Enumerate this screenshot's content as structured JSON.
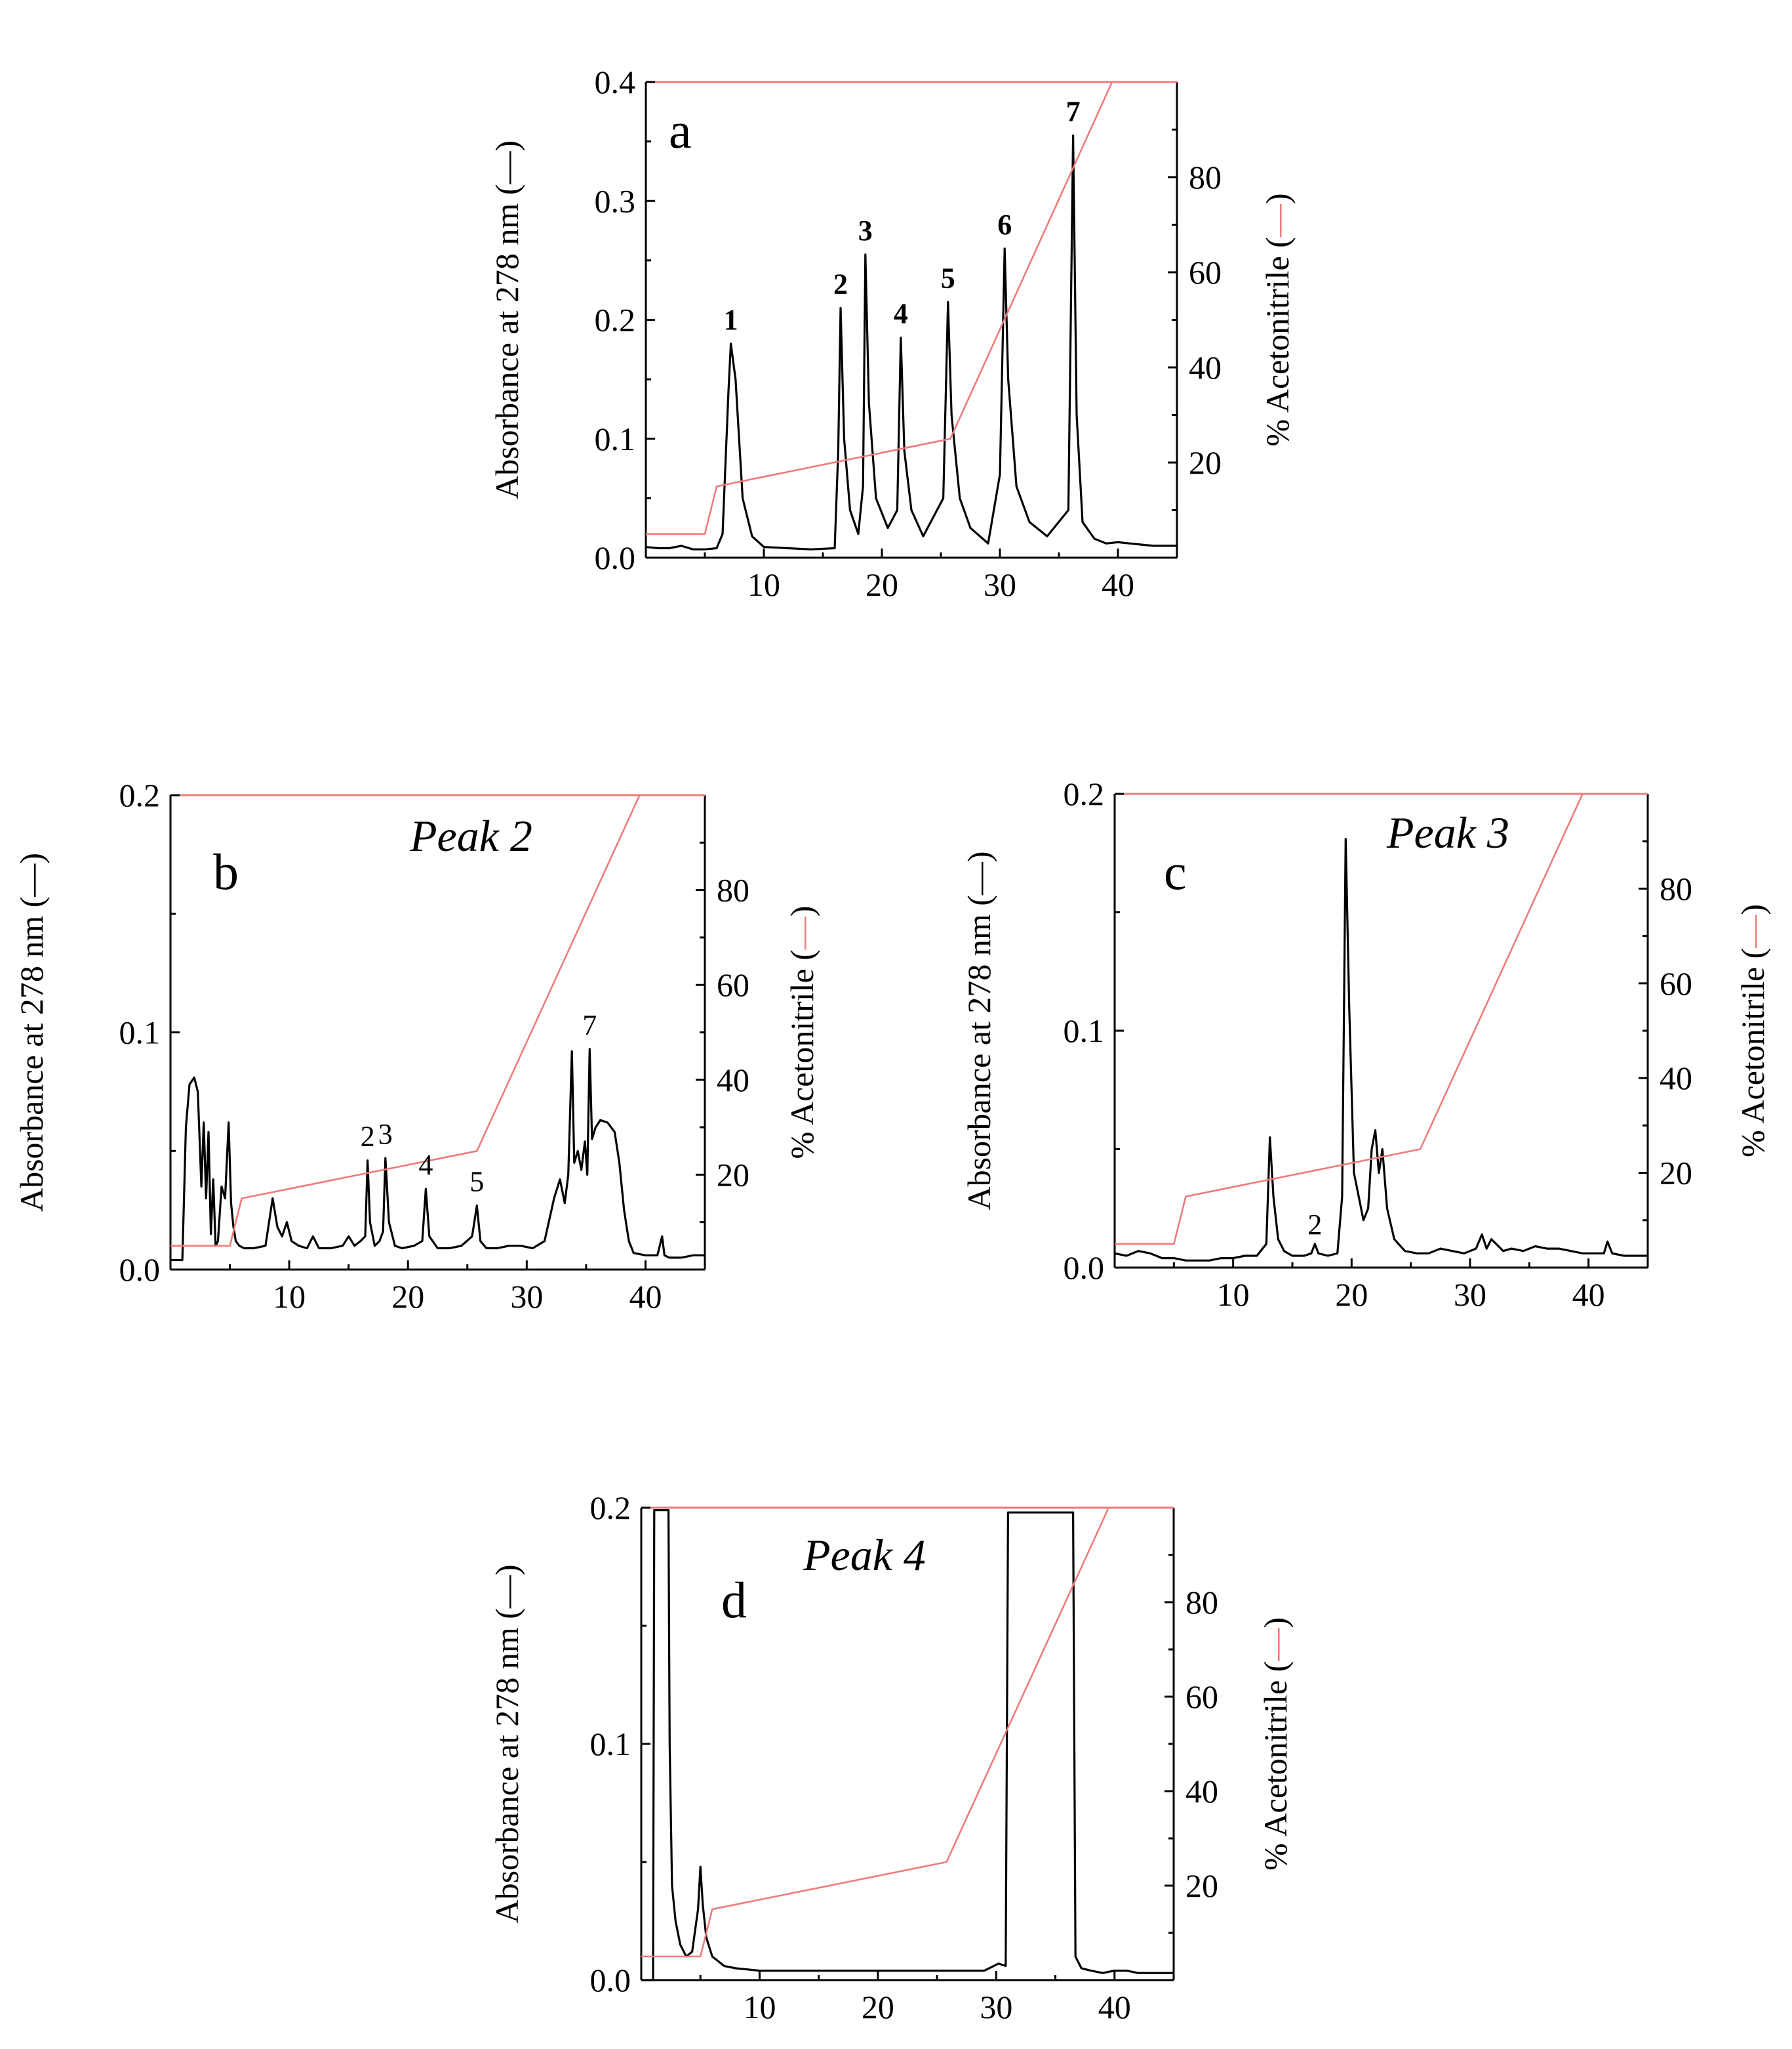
{
  "colors": {
    "absorbance": "#000000",
    "acetonitrile": "#f07a7a"
  },
  "legend_marks": {
    "absorbance": "—",
    "acetonitrile": "—"
  },
  "chart_data": [
    {
      "id": "a",
      "type": "line",
      "panel_label": "a",
      "title": "",
      "xlabel": "",
      "ylabel": "Absorbance at 278 nm (",
      "ylabel_right": "% Acetonitrile (",
      "label_close": ")",
      "xlim": [
        0,
        45
      ],
      "ylim": [
        0,
        0.4
      ],
      "ylim_right": [
        0,
        100
      ],
      "xticks": [
        10,
        20,
        30,
        40
      ],
      "yticks": [
        0.0,
        0.1,
        0.2,
        0.3,
        0.4
      ],
      "ytick_labels": [
        "0.0",
        "0.1",
        "0.2",
        "0.3",
        "0.4"
      ],
      "yticks_right": [
        20,
        40,
        60,
        80
      ],
      "peak_label_style": "bold",
      "peaks": [
        {
          "label": "1",
          "x": 7.2,
          "y": 0.18
        },
        {
          "label": "2",
          "x": 16.5,
          "y": 0.21
        },
        {
          "label": "3",
          "x": 18.6,
          "y": 0.255
        },
        {
          "label": "4",
          "x": 21.6,
          "y": 0.185
        },
        {
          "label": "5",
          "x": 25.6,
          "y": 0.215
        },
        {
          "label": "6",
          "x": 30.4,
          "y": 0.26
        },
        {
          "label": "7",
          "x": 36.2,
          "y": 0.355
        }
      ],
      "series": [
        {
          "name": "Absorbance at 278 nm",
          "axis": "left",
          "x": [
            0,
            1,
            2,
            3,
            4,
            5,
            6,
            6.5,
            7.0,
            7.2,
            7.6,
            8.2,
            9.0,
            10,
            12,
            14,
            16.0,
            16.3,
            16.5,
            16.8,
            17.3,
            18.0,
            18.4,
            18.6,
            18.9,
            19.5,
            20.5,
            21.3,
            21.6,
            21.9,
            22.5,
            23.5,
            25.2,
            25.6,
            25.9,
            26.6,
            27.5,
            29,
            30.0,
            30.4,
            30.7,
            31.4,
            32.5,
            34,
            35.8,
            36.2,
            36.5,
            37.0,
            38,
            39,
            40,
            41,
            42,
            43,
            44,
            45
          ],
          "y": [
            0.009,
            0.008,
            0.008,
            0.01,
            0.007,
            0.007,
            0.008,
            0.02,
            0.14,
            0.18,
            0.15,
            0.05,
            0.018,
            0.009,
            0.008,
            0.007,
            0.008,
            0.09,
            0.21,
            0.1,
            0.04,
            0.02,
            0.06,
            0.255,
            0.13,
            0.05,
            0.025,
            0.04,
            0.185,
            0.09,
            0.04,
            0.018,
            0.05,
            0.215,
            0.12,
            0.05,
            0.025,
            0.012,
            0.07,
            0.26,
            0.15,
            0.06,
            0.03,
            0.018,
            0.04,
            0.355,
            0.12,
            0.03,
            0.016,
            0.012,
            0.013,
            0.012,
            0.011,
            0.01,
            0.01,
            0.01
          ]
        },
        {
          "name": "% Acetonitrile",
          "axis": "right",
          "x": [
            0,
            5.0,
            6.0,
            25.8,
            39.5,
            45
          ],
          "y": [
            5,
            5,
            15,
            25,
            100,
            100
          ]
        }
      ]
    },
    {
      "id": "b",
      "type": "line",
      "panel_label": "b",
      "title": "Peak 2",
      "xlabel": "",
      "ylabel": "Absorbance at 278 nm (",
      "ylabel_right": "% Acetonitrile (",
      "label_close": ")",
      "xlim": [
        0,
        45
      ],
      "ylim": [
        0,
        0.2
      ],
      "ylim_right": [
        0,
        100
      ],
      "xticks": [
        10,
        20,
        30,
        40
      ],
      "yticks": [
        0.0,
        0.1,
        0.2
      ],
      "ytick_labels": [
        "0.0",
        "0.1",
        "0.2"
      ],
      "yticks_right": [
        20,
        40,
        60,
        80
      ],
      "peak_label_style": "plain",
      "peaks": [
        {
          "label": "2",
          "x": 16.6,
          "y": 0.046
        },
        {
          "label": "3",
          "x": 18.1,
          "y": 0.047
        },
        {
          "label": "4",
          "x": 21.5,
          "y": 0.034
        },
        {
          "label": "5",
          "x": 25.8,
          "y": 0.027
        },
        {
          "label": "7",
          "x": 35.3,
          "y": 0.093
        }
      ],
      "series": [
        {
          "name": "Absorbance at 278 nm",
          "axis": "left",
          "x": [
            0,
            1.0,
            1.3,
            1.6,
            2.0,
            2.3,
            2.6,
            2.8,
            3.0,
            3.2,
            3.4,
            3.6,
            3.8,
            4.0,
            4.3,
            4.6,
            4.9,
            5.1,
            5.3,
            5.5,
            5.8,
            6.2,
            7,
            8,
            8.6,
            9.0,
            9.4,
            9.8,
            10.2,
            10.8,
            11.5,
            12.0,
            12.5,
            13.5,
            14.5,
            15.0,
            15.5,
            16.0,
            16.4,
            16.6,
            16.8,
            17.2,
            17.6,
            17.9,
            18.1,
            18.4,
            18.9,
            19.5,
            20.5,
            21.2,
            21.5,
            21.8,
            22.5,
            23.5,
            24.5,
            25.4,
            25.8,
            26.1,
            26.6,
            27.5,
            28.5,
            29.5,
            30.5,
            31.5,
            32.3,
            32.8,
            33.2,
            33.5,
            33.8,
            34.0,
            34.3,
            34.6,
            34.9,
            35.1,
            35.3,
            35.5,
            35.8,
            36.2,
            36.8,
            37.4,
            37.8,
            38.2,
            38.6,
            39.0,
            40,
            41,
            41.4,
            41.6,
            42,
            43,
            44,
            45
          ],
          "y": [
            0.004,
            0.004,
            0.06,
            0.078,
            0.081,
            0.075,
            0.035,
            0.062,
            0.03,
            0.058,
            0.015,
            0.038,
            0.01,
            0.012,
            0.035,
            0.03,
            0.062,
            0.028,
            0.018,
            0.012,
            0.01,
            0.009,
            0.009,
            0.01,
            0.03,
            0.018,
            0.014,
            0.02,
            0.012,
            0.01,
            0.009,
            0.014,
            0.009,
            0.009,
            0.01,
            0.014,
            0.01,
            0.012,
            0.014,
            0.046,
            0.02,
            0.01,
            0.012,
            0.016,
            0.047,
            0.02,
            0.01,
            0.009,
            0.01,
            0.012,
            0.034,
            0.014,
            0.009,
            0.009,
            0.01,
            0.014,
            0.027,
            0.012,
            0.009,
            0.009,
            0.01,
            0.01,
            0.009,
            0.012,
            0.03,
            0.038,
            0.028,
            0.04,
            0.092,
            0.045,
            0.05,
            0.042,
            0.054,
            0.04,
            0.093,
            0.055,
            0.06,
            0.063,
            0.062,
            0.058,
            0.045,
            0.025,
            0.012,
            0.007,
            0.006,
            0.006,
            0.014,
            0.006,
            0.005,
            0.005,
            0.006,
            0.006
          ]
        },
        {
          "name": "% Acetonitrile",
          "axis": "right",
          "x": [
            0,
            5.0,
            6.0,
            25.8,
            39.5,
            45
          ],
          "y": [
            5,
            5,
            15,
            25,
            100,
            100
          ]
        }
      ]
    },
    {
      "id": "c",
      "type": "line",
      "panel_label": "c",
      "title": "Peak 3",
      "xlabel": "",
      "ylabel": "Absorbance at 278 nm (",
      "ylabel_right": "% Acetonitrile (",
      "label_close": ")",
      "xlim": [
        0,
        45
      ],
      "ylim": [
        0,
        0.2
      ],
      "ylim_right": [
        0,
        100
      ],
      "xticks": [
        10,
        20,
        30,
        40
      ],
      "yticks": [
        0.0,
        0.1,
        0.2
      ],
      "ytick_labels": [
        "0.0",
        "0.1",
        "0.2"
      ],
      "yticks_right": [
        20,
        40,
        60,
        80
      ],
      "peak_label_style": "plain",
      "peaks": [
        {
          "label": "2",
          "x": 16.9,
          "y": 0.008
        }
      ],
      "series": [
        {
          "name": "Absorbance at 278 nm",
          "axis": "left",
          "x": [
            0,
            1,
            2,
            3,
            4,
            5,
            6,
            7,
            8,
            9,
            10,
            11,
            12,
            12.8,
            13.1,
            13.4,
            13.8,
            14.3,
            15,
            16,
            16.6,
            16.9,
            17.2,
            18,
            18.8,
            19.2,
            19.5,
            19.8,
            20.2,
            20.6,
            21.0,
            21.4,
            21.7,
            22.0,
            22.3,
            22.6,
            23.0,
            23.6,
            24.5,
            25.5,
            26.5,
            27.5,
            28.5,
            29.5,
            30.5,
            31.0,
            31.4,
            31.8,
            32.2,
            32.8,
            33.5,
            34.5,
            35.5,
            36.5,
            37.5,
            38.5,
            39.5,
            40.5,
            41.3,
            41.6,
            42.0,
            43,
            44,
            45
          ],
          "y": [
            0.006,
            0.005,
            0.007,
            0.006,
            0.004,
            0.004,
            0.003,
            0.003,
            0.003,
            0.004,
            0.004,
            0.005,
            0.005,
            0.01,
            0.055,
            0.03,
            0.012,
            0.007,
            0.005,
            0.005,
            0.006,
            0.01,
            0.006,
            0.005,
            0.006,
            0.03,
            0.181,
            0.11,
            0.04,
            0.03,
            0.02,
            0.025,
            0.05,
            0.058,
            0.04,
            0.05,
            0.025,
            0.012,
            0.007,
            0.006,
            0.006,
            0.008,
            0.007,
            0.006,
            0.008,
            0.014,
            0.008,
            0.012,
            0.01,
            0.007,
            0.008,
            0.007,
            0.009,
            0.008,
            0.008,
            0.007,
            0.006,
            0.006,
            0.006,
            0.011,
            0.006,
            0.005,
            0.005,
            0.005
          ]
        },
        {
          "name": "% Acetonitrile",
          "axis": "right",
          "x": [
            0,
            5.0,
            6.0,
            25.8,
            39.5,
            45
          ],
          "y": [
            5,
            5,
            15,
            25,
            100,
            100
          ]
        }
      ]
    },
    {
      "id": "d",
      "type": "line",
      "panel_label": "d",
      "title": "Peak 4",
      "xlabel": "",
      "ylabel": "Absorbance at 278 nm (",
      "ylabel_right": "% Acetonitrile (",
      "label_close": ")",
      "xlim": [
        0,
        45
      ],
      "ylim": [
        0,
        0.2
      ],
      "ylim_right": [
        0,
        100
      ],
      "xticks": [
        10,
        20,
        30,
        40
      ],
      "yticks": [
        0.0,
        0.1,
        0.2
      ],
      "ytick_labels": [
        "0.0",
        "0.1",
        "0.2"
      ],
      "yticks_right": [
        20,
        40,
        60,
        80
      ],
      "peak_label_style": "plain",
      "peaks": [],
      "series": [
        {
          "name": "Absorbance at 278 nm",
          "axis": "left",
          "x": [
            0,
            1.0,
            1.1,
            2.3,
            2.4,
            2.6,
            2.9,
            3.3,
            3.8,
            4.3,
            4.8,
            5.0,
            5.2,
            5.5,
            6.0,
            7,
            8,
            10,
            15,
            20,
            25,
            29,
            30.2,
            30.8,
            31.0,
            36.5,
            36.7,
            37.2,
            38,
            39,
            40,
            41,
            42,
            43,
            44,
            45
          ],
          "y": [
            0.0,
            0.0,
            0.199,
            0.199,
            0.1,
            0.04,
            0.025,
            0.015,
            0.01,
            0.012,
            0.03,
            0.048,
            0.032,
            0.018,
            0.01,
            0.006,
            0.005,
            0.004,
            0.004,
            0.004,
            0.004,
            0.004,
            0.007,
            0.006,
            0.198,
            0.198,
            0.01,
            0.005,
            0.004,
            0.003,
            0.004,
            0.004,
            0.003,
            0.003,
            0.003,
            0.003
          ]
        },
        {
          "name": "% Acetonitrile",
          "axis": "right",
          "x": [
            0,
            5.0,
            6.0,
            25.8,
            39.5,
            45
          ],
          "y": [
            5,
            5,
            15,
            25,
            100,
            100
          ]
        }
      ]
    }
  ]
}
